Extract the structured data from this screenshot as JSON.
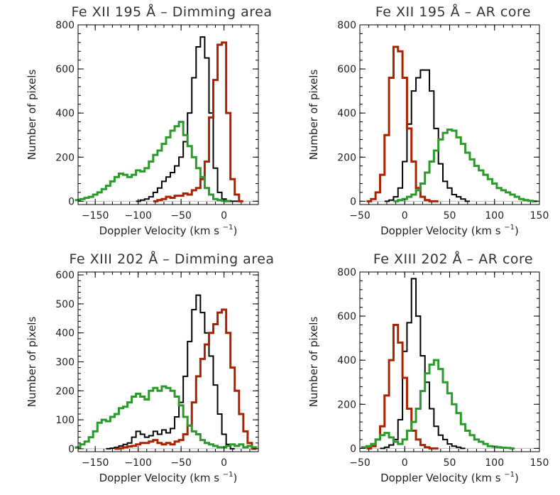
{
  "chart_data": [
    {
      "type": "line",
      "title": "Fe XII 195 Å – Dimming area",
      "xlabel": "Doppler Velocity (km s",
      "xlabel_sup": "−1",
      "xlabel_end": ")",
      "ylabel": "Number of pixels",
      "xlim": [
        -170,
        40
      ],
      "ylim": [
        -15,
        800
      ],
      "xticks": [
        -150,
        -100,
        -50,
        0
      ],
      "yticks": [
        0,
        200,
        400,
        600,
        800
      ],
      "bin_width": 5,
      "series": [
        {
          "color": "#000000",
          "x": [
            -100,
            -95,
            -90,
            -85,
            -80,
            -75,
            -70,
            -65,
            -60,
            -55,
            -50,
            -45,
            -40,
            -35,
            -30,
            -25,
            -20,
            -15,
            -10,
            -5,
            0,
            5,
            10,
            15
          ],
          "values": [
            0,
            5,
            10,
            20,
            40,
            60,
            90,
            110,
            130,
            160,
            200,
            270,
            400,
            560,
            700,
            745,
            650,
            400,
            150,
            40,
            10,
            2,
            0,
            0
          ]
        },
        {
          "color": "#aa2200",
          "x": [
            -80,
            -75,
            -70,
            -65,
            -60,
            -55,
            -50,
            -45,
            -40,
            -35,
            -30,
            -25,
            -20,
            -15,
            -10,
            -5,
            0,
            5,
            10,
            15,
            20
          ],
          "values": [
            0,
            5,
            10,
            20,
            15,
            25,
            25,
            35,
            30,
            50,
            60,
            100,
            180,
            380,
            550,
            710,
            720,
            400,
            100,
            30,
            0
          ]
        },
        {
          "color": "#2a9a2a",
          "x": [
            -170,
            -165,
            -160,
            -155,
            -150,
            -145,
            -140,
            -135,
            -130,
            -125,
            -120,
            -115,
            -110,
            -105,
            -100,
            -95,
            -90,
            -85,
            -80,
            -75,
            -70,
            -65,
            -60,
            -55,
            -50,
            -45,
            -40,
            -35,
            -30,
            -25,
            -20,
            -15,
            -10,
            -5,
            0,
            5
          ],
          "values": [
            5,
            10,
            15,
            20,
            30,
            40,
            55,
            70,
            90,
            110,
            125,
            120,
            110,
            120,
            140,
            135,
            150,
            180,
            210,
            230,
            260,
            290,
            320,
            340,
            360,
            300,
            250,
            200,
            150,
            110,
            60,
            30,
            10,
            5,
            2,
            0
          ]
        }
      ]
    },
    {
      "type": "line",
      "title": "Fe XII 195 Å – AR core",
      "xlabel": "Doppler Velocity (km s",
      "xlabel_sup": "−1",
      "xlabel_end": ")",
      "ylabel": "Number of pixels",
      "xlim": [
        -50,
        150
      ],
      "ylim": [
        -15,
        800
      ],
      "xticks": [
        -50,
        0,
        50,
        100,
        150
      ],
      "yticks": [
        0,
        200,
        400,
        600,
        800
      ],
      "bin_width": 5,
      "series": [
        {
          "color": "#000000",
          "x": [
            -20,
            -15,
            -10,
            -5,
            0,
            5,
            10,
            15,
            20,
            25,
            30,
            35,
            40,
            45,
            50,
            55,
            60,
            65,
            70
          ],
          "values": [
            0,
            5,
            20,
            60,
            180,
            350,
            500,
            560,
            595,
            595,
            500,
            330,
            170,
            90,
            60,
            30,
            20,
            10,
            0
          ]
        },
        {
          "color": "#aa2200",
          "x": [
            -40,
            -35,
            -30,
            -25,
            -20,
            -15,
            -10,
            -5,
            0,
            5,
            10,
            15,
            20,
            25,
            30,
            35
          ],
          "values": [
            0,
            10,
            40,
            120,
            300,
            560,
            700,
            680,
            560,
            330,
            180,
            60,
            20,
            5,
            0,
            0
          ]
        },
        {
          "color": "#2a9a2a",
          "x": [
            -10,
            -5,
            0,
            5,
            10,
            15,
            20,
            25,
            30,
            35,
            40,
            45,
            50,
            55,
            60,
            65,
            70,
            75,
            80,
            85,
            90,
            95,
            100,
            105,
            110,
            115,
            120,
            125,
            130,
            135,
            140,
            145
          ],
          "values": [
            0,
            5,
            10,
            20,
            30,
            50,
            80,
            130,
            180,
            230,
            280,
            310,
            325,
            320,
            290,
            260,
            220,
            190,
            160,
            140,
            120,
            100,
            80,
            60,
            50,
            40,
            30,
            20,
            10,
            5,
            2,
            0
          ]
        }
      ]
    },
    {
      "type": "line",
      "title": "Fe XIII 202 Å – Dimming area",
      "xlabel": "Doppler Velocity (km s",
      "xlabel_sup": "−1",
      "xlabel_end": ")",
      "ylabel": "Number of pixels",
      "xlim": [
        -170,
        40
      ],
      "ylim": [
        -10,
        610
      ],
      "xticks": [
        -150,
        -100,
        -50,
        0
      ],
      "yticks": [
        0,
        100,
        200,
        300,
        400,
        500,
        600
      ],
      "bin_width": 5,
      "series": [
        {
          "color": "#000000",
          "x": [
            -135,
            -130,
            -125,
            -120,
            -115,
            -110,
            -105,
            -100,
            -95,
            -90,
            -85,
            -80,
            -75,
            -70,
            -65,
            -60,
            -55,
            -50,
            -45,
            -40,
            -35,
            -30,
            -25,
            -20,
            -15,
            -10,
            -5,
            0,
            5,
            10
          ],
          "values": [
            0,
            2,
            5,
            10,
            15,
            20,
            40,
            60,
            50,
            40,
            45,
            60,
            50,
            65,
            55,
            70,
            110,
            160,
            250,
            370,
            480,
            530,
            470,
            400,
            320,
            220,
            120,
            50,
            15,
            0
          ]
        },
        {
          "color": "#aa2200",
          "x": [
            -125,
            -120,
            -115,
            -110,
            -105,
            -100,
            -95,
            -90,
            -85,
            -80,
            -75,
            -70,
            -65,
            -60,
            -55,
            -50,
            -45,
            -40,
            -35,
            -30,
            -25,
            -20,
            -15,
            -10,
            -5,
            0,
            5,
            10,
            15,
            20,
            25,
            30,
            35
          ],
          "values": [
            0,
            2,
            5,
            8,
            10,
            15,
            20,
            20,
            25,
            30,
            20,
            15,
            20,
            15,
            25,
            30,
            50,
            80,
            160,
            250,
            310,
            360,
            400,
            430,
            470,
            480,
            400,
            280,
            200,
            120,
            60,
            20,
            0
          ]
        },
        {
          "color": "#2a9a2a",
          "x": [
            -170,
            -165,
            -160,
            -155,
            -150,
            -145,
            -140,
            -135,
            -130,
            -125,
            -120,
            -115,
            -110,
            -105,
            -100,
            -95,
            -90,
            -85,
            -80,
            -75,
            -70,
            -65,
            -60,
            -55,
            -50,
            -45,
            -40,
            -35,
            -30,
            -25,
            -20,
            -15,
            -10,
            -5,
            0,
            5,
            10,
            15,
            20,
            25,
            30,
            35
          ],
          "values": [
            5,
            15,
            25,
            40,
            60,
            90,
            100,
            95,
            110,
            120,
            140,
            145,
            160,
            180,
            190,
            180,
            170,
            200,
            210,
            200,
            215,
            210,
            200,
            180,
            150,
            110,
            80,
            60,
            50,
            30,
            20,
            15,
            10,
            5,
            5,
            10,
            15,
            10,
            15,
            5,
            10,
            5
          ]
        }
      ]
    },
    {
      "type": "line",
      "title": "Fe XIII 202 Å – AR core",
      "xlabel": "Doppler Velocity (km s",
      "xlabel_sup": "−1",
      "xlabel_end": ")",
      "ylabel": "Number of pixels",
      "xlim": [
        -50,
        150
      ],
      "ylim": [
        -15,
        800
      ],
      "xticks": [
        -50,
        0,
        50,
        100,
        150
      ],
      "yticks": [
        0,
        200,
        400,
        600,
        800
      ],
      "bin_width": 5,
      "series": [
        {
          "color": "#000000",
          "x": [
            -25,
            -20,
            -15,
            -10,
            -5,
            0,
            5,
            10,
            15,
            20,
            25,
            30,
            35,
            40,
            45,
            50,
            55,
            60,
            65
          ],
          "values": [
            0,
            5,
            15,
            40,
            130,
            440,
            570,
            770,
            600,
            420,
            300,
            180,
            100,
            60,
            40,
            20,
            10,
            5,
            0
          ]
        },
        {
          "color": "#aa2200",
          "x": [
            -40,
            -35,
            -30,
            -25,
            -20,
            -15,
            -10,
            -5,
            0,
            5,
            10,
            15,
            20,
            25,
            30,
            35
          ],
          "values": [
            0,
            10,
            40,
            100,
            240,
            400,
            560,
            480,
            320,
            180,
            80,
            40,
            15,
            5,
            0,
            0
          ]
        },
        {
          "color": "#2a9a2a",
          "x": [
            -45,
            -40,
            -35,
            -30,
            -25,
            -20,
            -15,
            -10,
            -5,
            0,
            5,
            10,
            15,
            20,
            25,
            30,
            35,
            40,
            45,
            50,
            55,
            60,
            65,
            70,
            75,
            80,
            85,
            90,
            95,
            100,
            105,
            110,
            115,
            120
          ],
          "values": [
            5,
            10,
            20,
            40,
            60,
            70,
            50,
            30,
            20,
            40,
            80,
            120,
            180,
            260,
            340,
            380,
            400,
            360,
            300,
            250,
            200,
            160,
            110,
            80,
            60,
            40,
            30,
            20,
            10,
            8,
            5,
            3,
            2,
            0
          ]
        }
      ]
    }
  ]
}
